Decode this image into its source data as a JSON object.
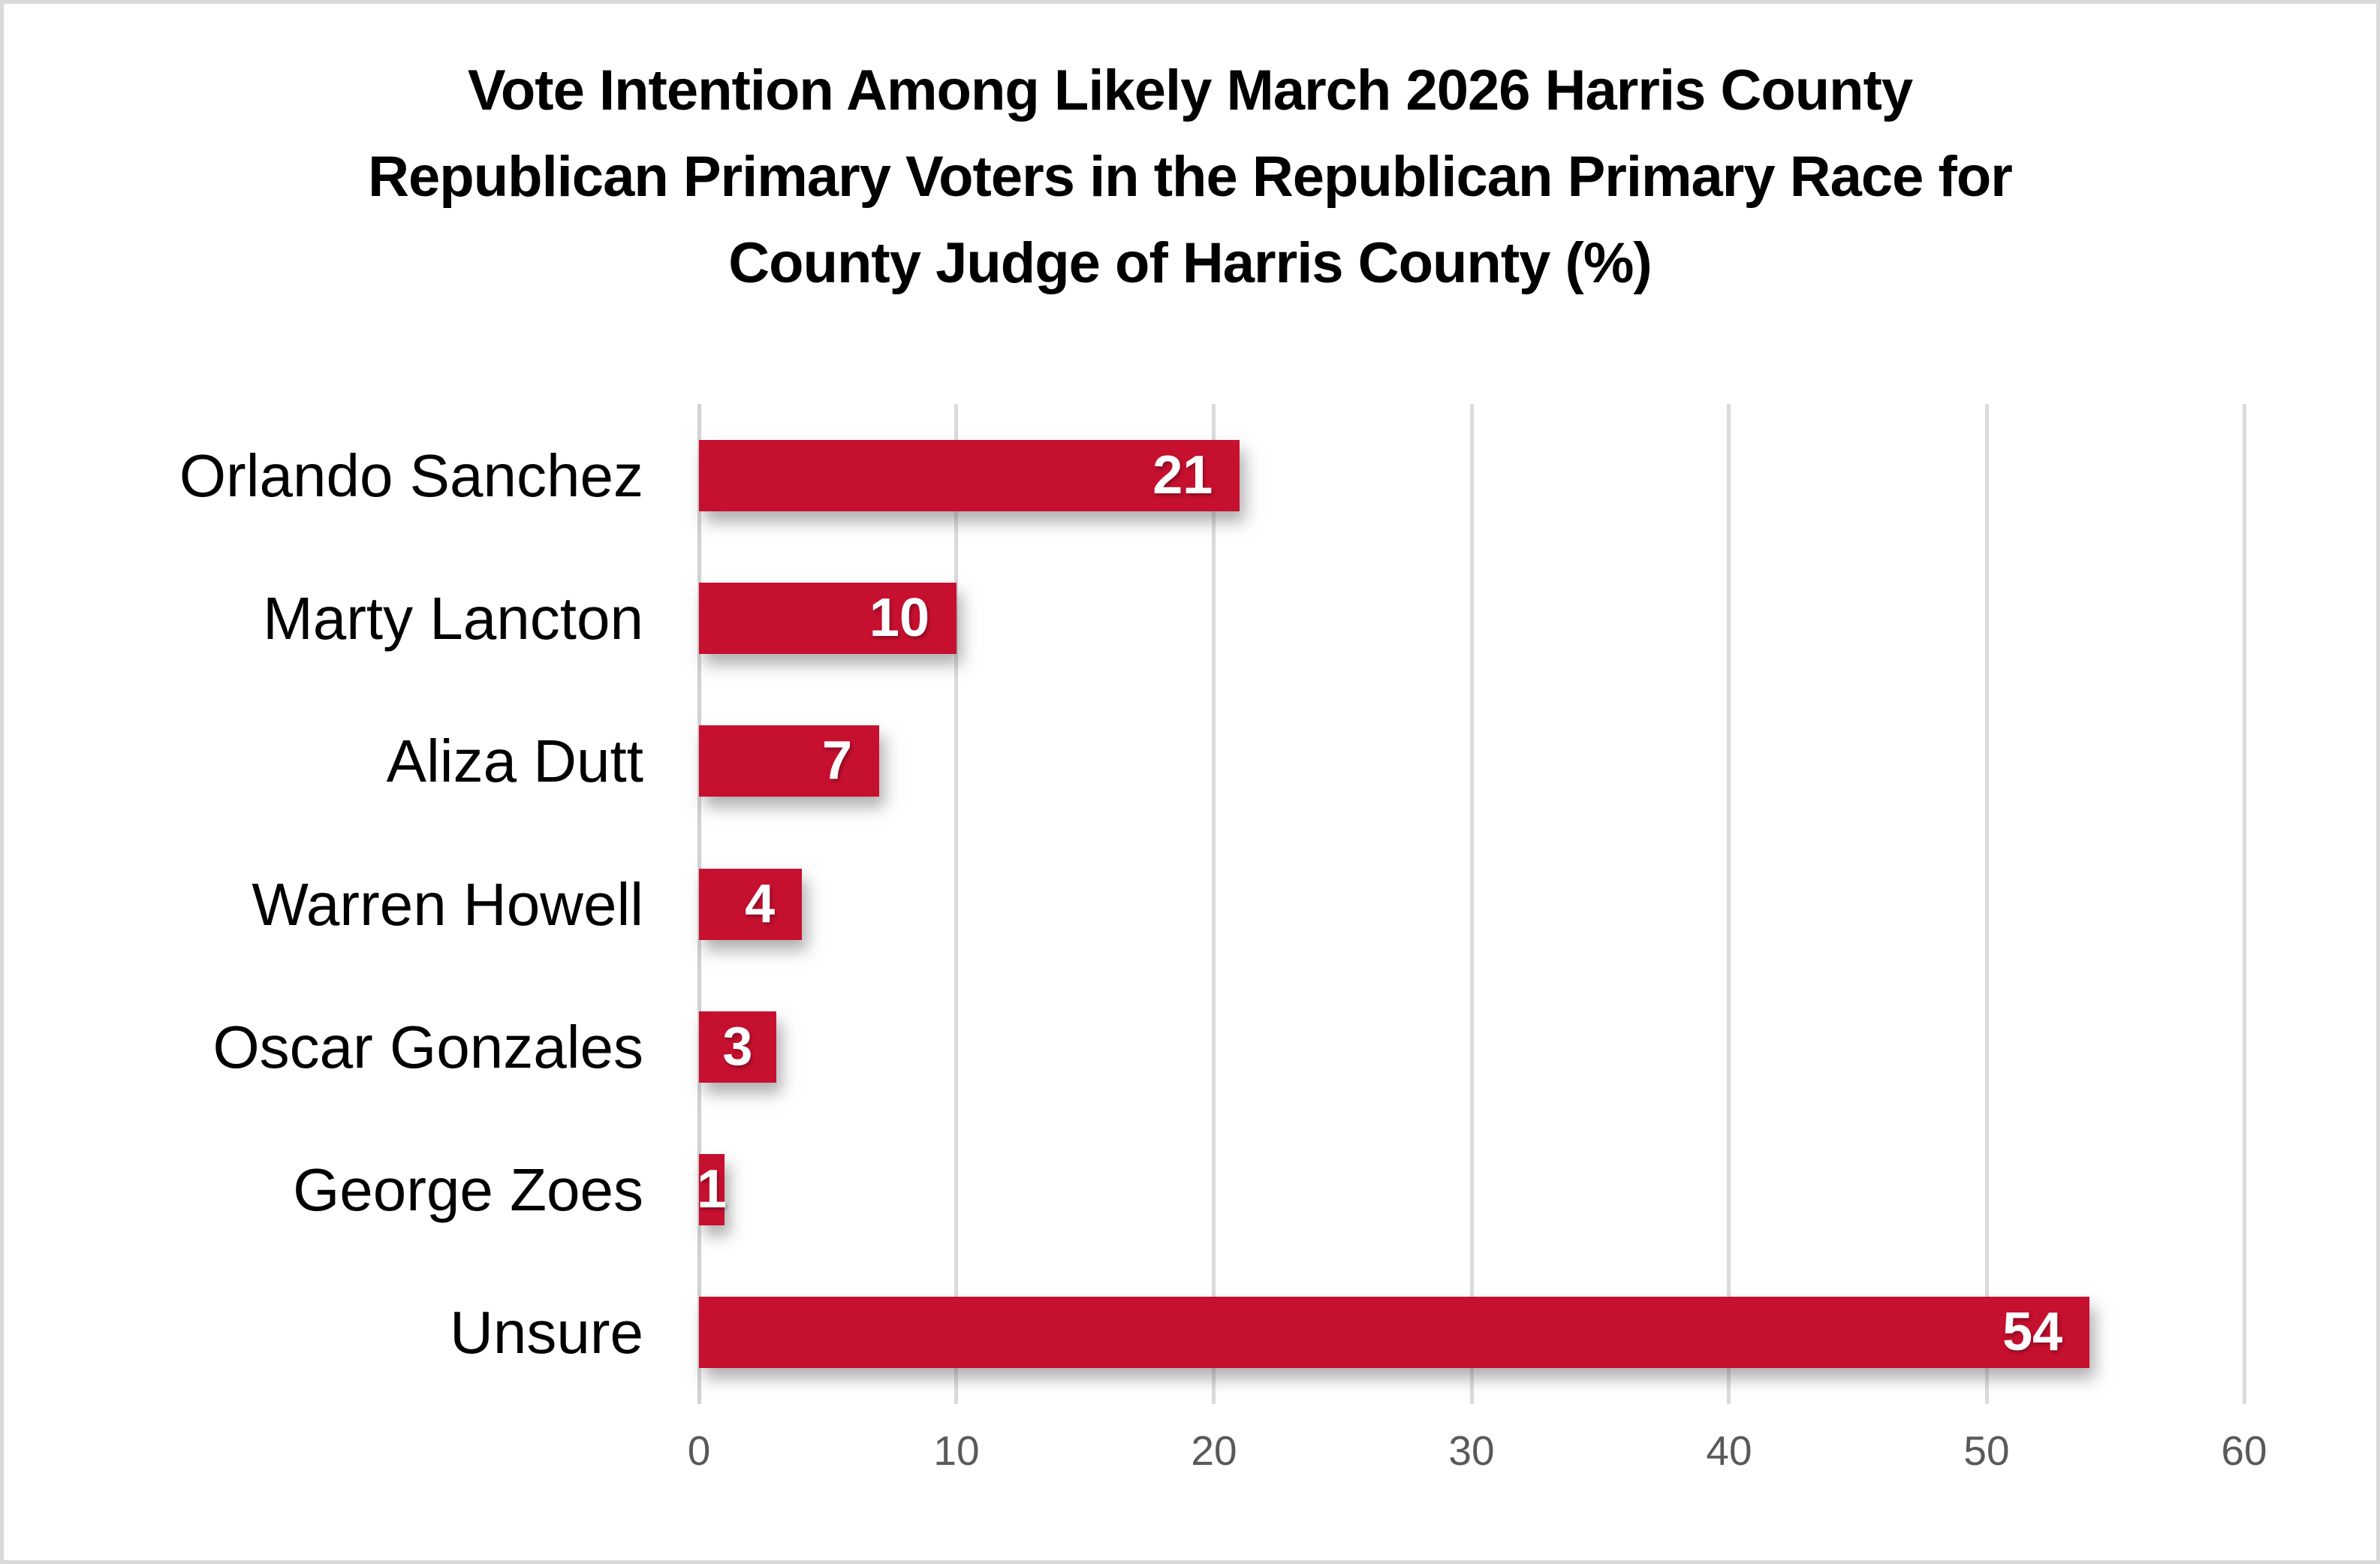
{
  "chart_data": {
    "type": "bar",
    "orientation": "horizontal",
    "title": "Vote Intention Among Likely March 2026 Harris County Republican Primary Voters in the Republican Primary Race for County Judge of Harris County (%)",
    "title_lines": [
      "Vote Intention Among Likely March 2026 Harris County",
      "Republican Primary Voters in the Republican Primary Race for",
      "County Judge of Harris County (%)"
    ],
    "categories": [
      "Orlando Sanchez",
      "Marty Lancton",
      "Aliza Dutt",
      "Warren Howell",
      "Oscar Gonzales",
      "George Zoes",
      "Unsure"
    ],
    "values": [
      21,
      10,
      7,
      4,
      3,
      1,
      54
    ],
    "xlabel": "",
    "ylabel": "",
    "xlim": [
      0,
      60
    ],
    "xticks": [
      0,
      10,
      20,
      30,
      40,
      50,
      60
    ],
    "grid": "vertical-gridlines-on",
    "legend": "none",
    "value_labels": "inside-end-white-bold",
    "colors": {
      "bar": "#C6102F",
      "value_label": "#FFFFFF",
      "category_label": "#000000",
      "tick_label": "#595959",
      "gridline": "#DBDBDB",
      "zero_line": "#D2D2D2",
      "background": "#FFFFFF",
      "frame_border": "#D9D9D9",
      "title": "#000000"
    }
  }
}
